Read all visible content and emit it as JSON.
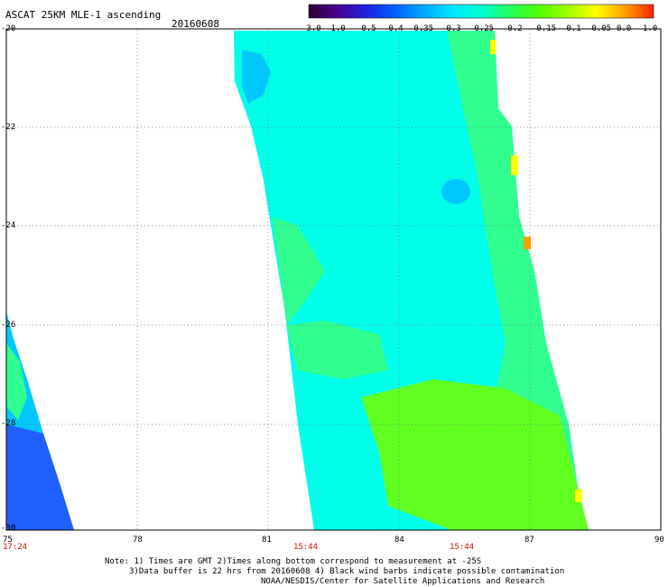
{
  "header": {
    "title": "ASCAT 25KM MLE-1 ascending",
    "date": "20160608"
  },
  "colorbar": {
    "ticks": [
      "-3.0",
      "-1.0",
      "-0.5",
      "-0.4",
      "-0.35",
      "-0.3",
      "-0.25",
      "-0.2",
      "-0.15",
      "-0.1",
      "-0.05",
      "0.0",
      "1.0"
    ],
    "colors": [
      "#2a0030",
      "#4a0090",
      "#2020e0",
      "#0060ff",
      "#00a8ff",
      "#00e8ff",
      "#00ffd0",
      "#20ff60",
      "#50ff00",
      "#a0ff00",
      "#ffff00",
      "#ffa000",
      "#ff2000"
    ]
  },
  "map": {
    "lon_ticks": [
      "75",
      "78",
      "81",
      "84",
      "87",
      "90"
    ],
    "lat_ticks": [
      "-20",
      "-22",
      "-24",
      "-26",
      "-28",
      "-30"
    ],
    "lon_range": [
      75,
      90
    ],
    "lat_range": [
      -30,
      -20
    ],
    "grid": true,
    "swath_colors": {
      "low": "#2060ff",
      "mid_low": "#00c8ff",
      "mid": "#00ffe8",
      "mid_high": "#30ff90",
      "high": "#60ff20",
      "warm": "#ffff00",
      "hot": "#ffa000"
    }
  },
  "times": [
    "17:24",
    "15:44",
    "15:44"
  ],
  "notes": [
    "Note: 1) Times are GMT 2)Times along bottom correspond to measurement at -25S",
    "3)Data buffer is 22 hrs from 20160608 4) Black wind barbs indicate possible contamination",
    "NOAA/NESDIS/Center for Satellite Applications and Research"
  ]
}
